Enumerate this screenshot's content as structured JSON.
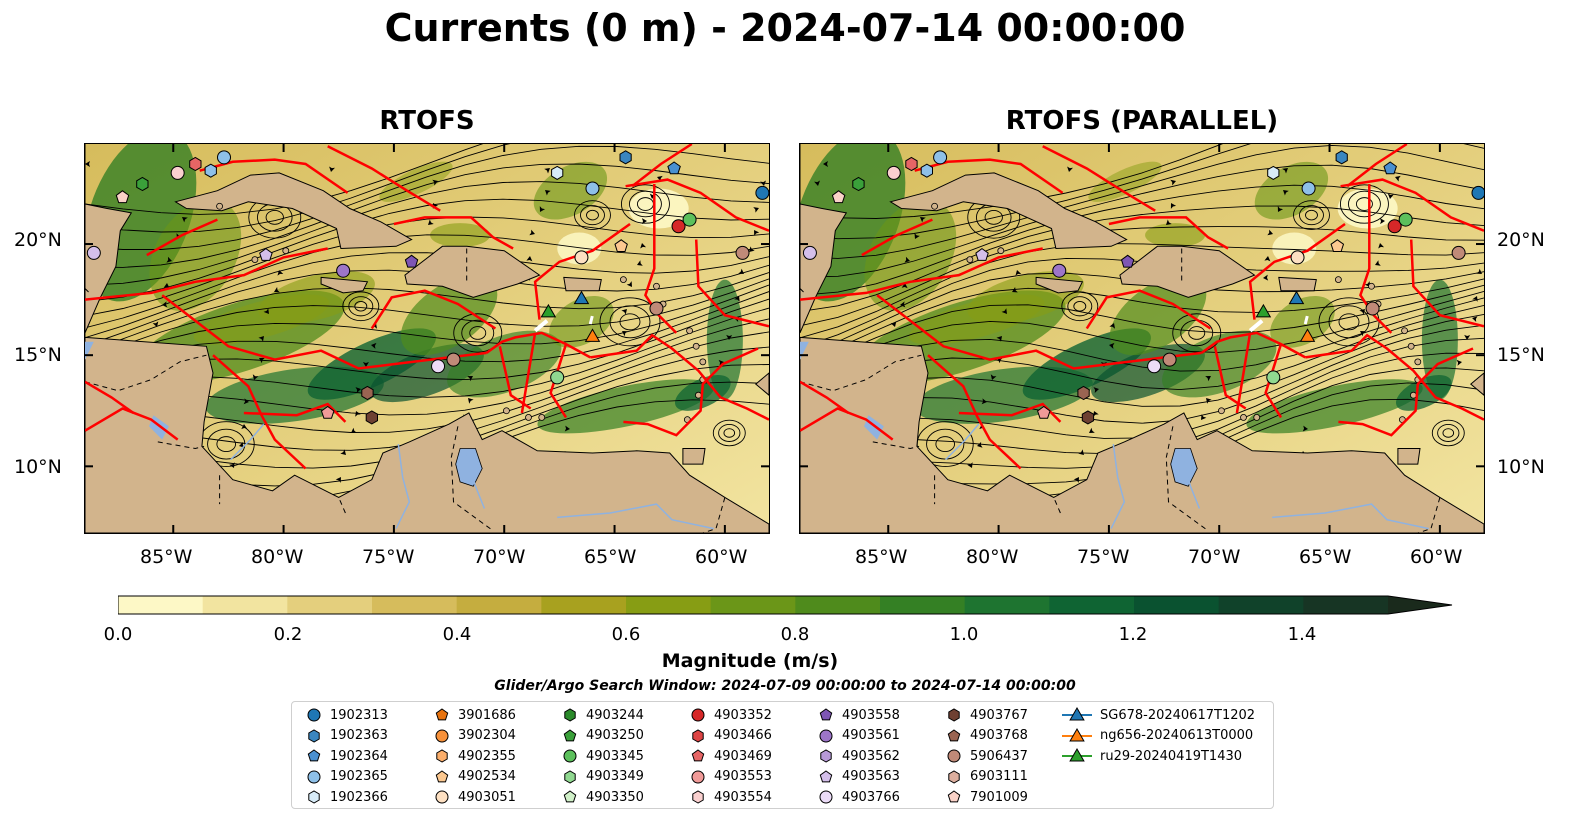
{
  "title": "Currents (0 m) - 2024-07-14 00:00:00",
  "panels": [
    {
      "title": "RTOFS"
    },
    {
      "title": "RTOFS (PARALLEL)"
    }
  ],
  "map": {
    "lon_range": [
      -89,
      -58
    ],
    "lat_range": [
      7,
      24.5
    ],
    "lon_ticks": [
      "85°W",
      "80°W",
      "75°W",
      "70°W",
      "65°W",
      "60°W"
    ],
    "lat_ticks": [
      "20°N",
      "15°N",
      "10°N"
    ],
    "land_color": "#d2b48c",
    "eez_color": "#ff0000",
    "lake_color": "#8fb2e0"
  },
  "colorbar": {
    "label": "Magnitude (m/s)",
    "range": [
      0,
      1.5
    ],
    "ticks": [
      "0.0",
      "0.2",
      "0.4",
      "0.6",
      "0.8",
      "1.0",
      "1.2",
      "1.4"
    ],
    "extend": "max",
    "colors": [
      "#fdf8c6",
      "#f2e4a0",
      "#e4cf7d",
      "#d6bc5c",
      "#c5ad3f",
      "#a8a11f",
      "#879d14",
      "#6b9618",
      "#4f8b1c",
      "#348024",
      "#1e7430",
      "#0f6433",
      "#0a5230",
      "#10422a",
      "#173524",
      "#1a2a1c"
    ]
  },
  "search_window": "Glider/Argo Search Window: 2024-07-09 00:00:00 to 2024-07-14 00:00:00",
  "legend": [
    {
      "label": "1902313",
      "marker": "circle",
      "color": "#1f77b4"
    },
    {
      "label": "1902363",
      "marker": "hexagon",
      "color": "#3a86c0"
    },
    {
      "label": "1902364",
      "marker": "pentagon",
      "color": "#4a90d0"
    },
    {
      "label": "1902365",
      "marker": "circle",
      "color": "#8ec0e8"
    },
    {
      "label": "1902366",
      "marker": "hexagon",
      "color": "#d8ecf8"
    },
    {
      "label": "3901686",
      "marker": "pentagon",
      "color": "#e8730e"
    },
    {
      "label": "3902304",
      "marker": "circle",
      "color": "#f7913a"
    },
    {
      "label": "4902355",
      "marker": "hexagon",
      "color": "#fbae6b"
    },
    {
      "label": "4902534",
      "marker": "pentagon",
      "color": "#fcc890"
    },
    {
      "label": "4903051",
      "marker": "circle",
      "color": "#fde0c2"
    },
    {
      "label": "4903244",
      "marker": "hexagon",
      "color": "#2a8a2a"
    },
    {
      "label": "4903250",
      "marker": "pentagon",
      "color": "#3aa03a"
    },
    {
      "label": "4903345",
      "marker": "circle",
      "color": "#5cc05c"
    },
    {
      "label": "4903349",
      "marker": "hexagon",
      "color": "#90d890"
    },
    {
      "label": "4903350",
      "marker": "pentagon",
      "color": "#d0f0c8"
    },
    {
      "label": "4903352",
      "marker": "circle",
      "color": "#d62728"
    },
    {
      "label": "4903466",
      "marker": "hexagon",
      "color": "#dd4444"
    },
    {
      "label": "4903469",
      "marker": "pentagon",
      "color": "#e66565"
    },
    {
      "label": "4903553",
      "marker": "circle",
      "color": "#f09a98"
    },
    {
      "label": "4903554",
      "marker": "hexagon",
      "color": "#fad0cf"
    },
    {
      "label": "4903558",
      "marker": "pentagon",
      "color": "#7e56b4"
    },
    {
      "label": "4903561",
      "marker": "circle",
      "color": "#9d75c8"
    },
    {
      "label": "4903562",
      "marker": "hexagon",
      "color": "#b89ad8"
    },
    {
      "label": "4903563",
      "marker": "pentagon",
      "color": "#d4bfea"
    },
    {
      "label": "4903766",
      "marker": "circle",
      "color": "#ecdcf8"
    },
    {
      "label": "4903767",
      "marker": "hexagon",
      "color": "#6e4032"
    },
    {
      "label": "4903768",
      "marker": "pentagon",
      "color": "#9a6452"
    },
    {
      "label": "5906437",
      "marker": "circle",
      "color": "#c08a78"
    },
    {
      "label": "6903111",
      "marker": "hexagon",
      "color": "#dcae9e"
    },
    {
      "label": "7901009",
      "marker": "pentagon",
      "color": "#fad2c8"
    },
    {
      "label": "SG678-20240617T1202",
      "marker": "triangle-line",
      "color": "#1f77b4"
    },
    {
      "label": "ng656-20240613T0000",
      "marker": "triangle-line",
      "color": "#ff7f0e"
    },
    {
      "label": "ru29-20240419T1430",
      "marker": "triangle-line",
      "color": "#2ca02c"
    }
  ]
}
